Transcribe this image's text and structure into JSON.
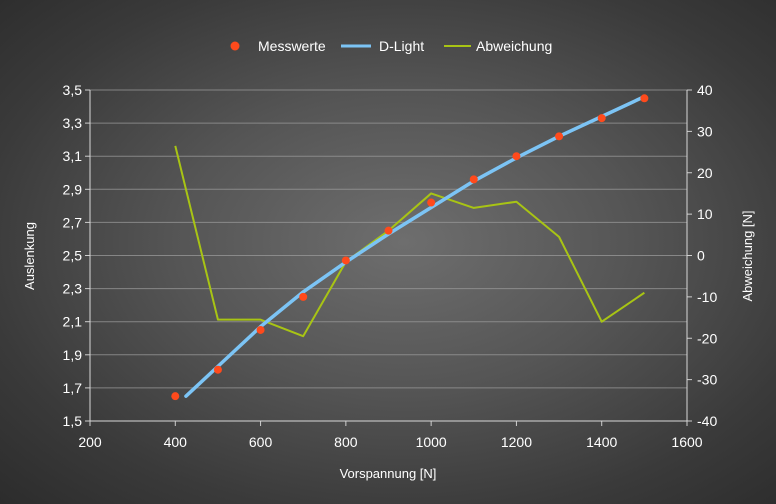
{
  "chart_data": {
    "type": "line",
    "title": "",
    "xlabel": "Vorspannung [N]",
    "ylabel": "Auslenkung",
    "y2label": "Abweichung [N]",
    "xlim": [
      200,
      1600
    ],
    "xticks": [
      "200",
      "400",
      "600",
      "800",
      "1000",
      "1200",
      "1400",
      "1600"
    ],
    "ylim": [
      1.5,
      3.5
    ],
    "yticks": [
      "1,5",
      "1,7",
      "1,9",
      "2,1",
      "2,3",
      "2,5",
      "2,7",
      "2,9",
      "3,1",
      "3,3",
      "3,5"
    ],
    "y2lim": [
      -40,
      40
    ],
    "y2ticks": [
      "-40",
      "-30",
      "-20",
      "-10",
      "0",
      "10",
      "20",
      "30",
      "40"
    ],
    "grid": true,
    "legend_position": "top",
    "series": [
      {
        "name": "Messwerte",
        "kind": "scatter",
        "axis": "left",
        "color": "#ff4a1c",
        "x": [
          400,
          500,
          600,
          700,
          800,
          900,
          1000,
          1100,
          1200,
          1300,
          1400,
          1500
        ],
        "y": [
          1.65,
          1.81,
          2.05,
          2.25,
          2.47,
          2.65,
          2.82,
          2.96,
          3.1,
          3.22,
          3.33,
          3.45
        ]
      },
      {
        "name": "D-Light",
        "kind": "line",
        "axis": "left",
        "color": "#7cc4f5",
        "x": [
          425,
          500,
          600,
          700,
          800,
          900,
          1000,
          1100,
          1200,
          1300,
          1400,
          1500
        ],
        "y": [
          1.65,
          1.83,
          2.07,
          2.28,
          2.46,
          2.63,
          2.79,
          2.95,
          3.09,
          3.22,
          3.34,
          3.46
        ]
      },
      {
        "name": "Abweichung",
        "kind": "line",
        "axis": "right",
        "color": "#a8c414",
        "x": [
          400,
          500,
          600,
          700,
          800,
          900,
          1000,
          1100,
          1200,
          1300,
          1400,
          1500
        ],
        "y": [
          26.5,
          -15.5,
          -15.5,
          -19.5,
          -1.5,
          6,
          15,
          11.5,
          13,
          4.5,
          -16,
          -9
        ]
      }
    ]
  }
}
